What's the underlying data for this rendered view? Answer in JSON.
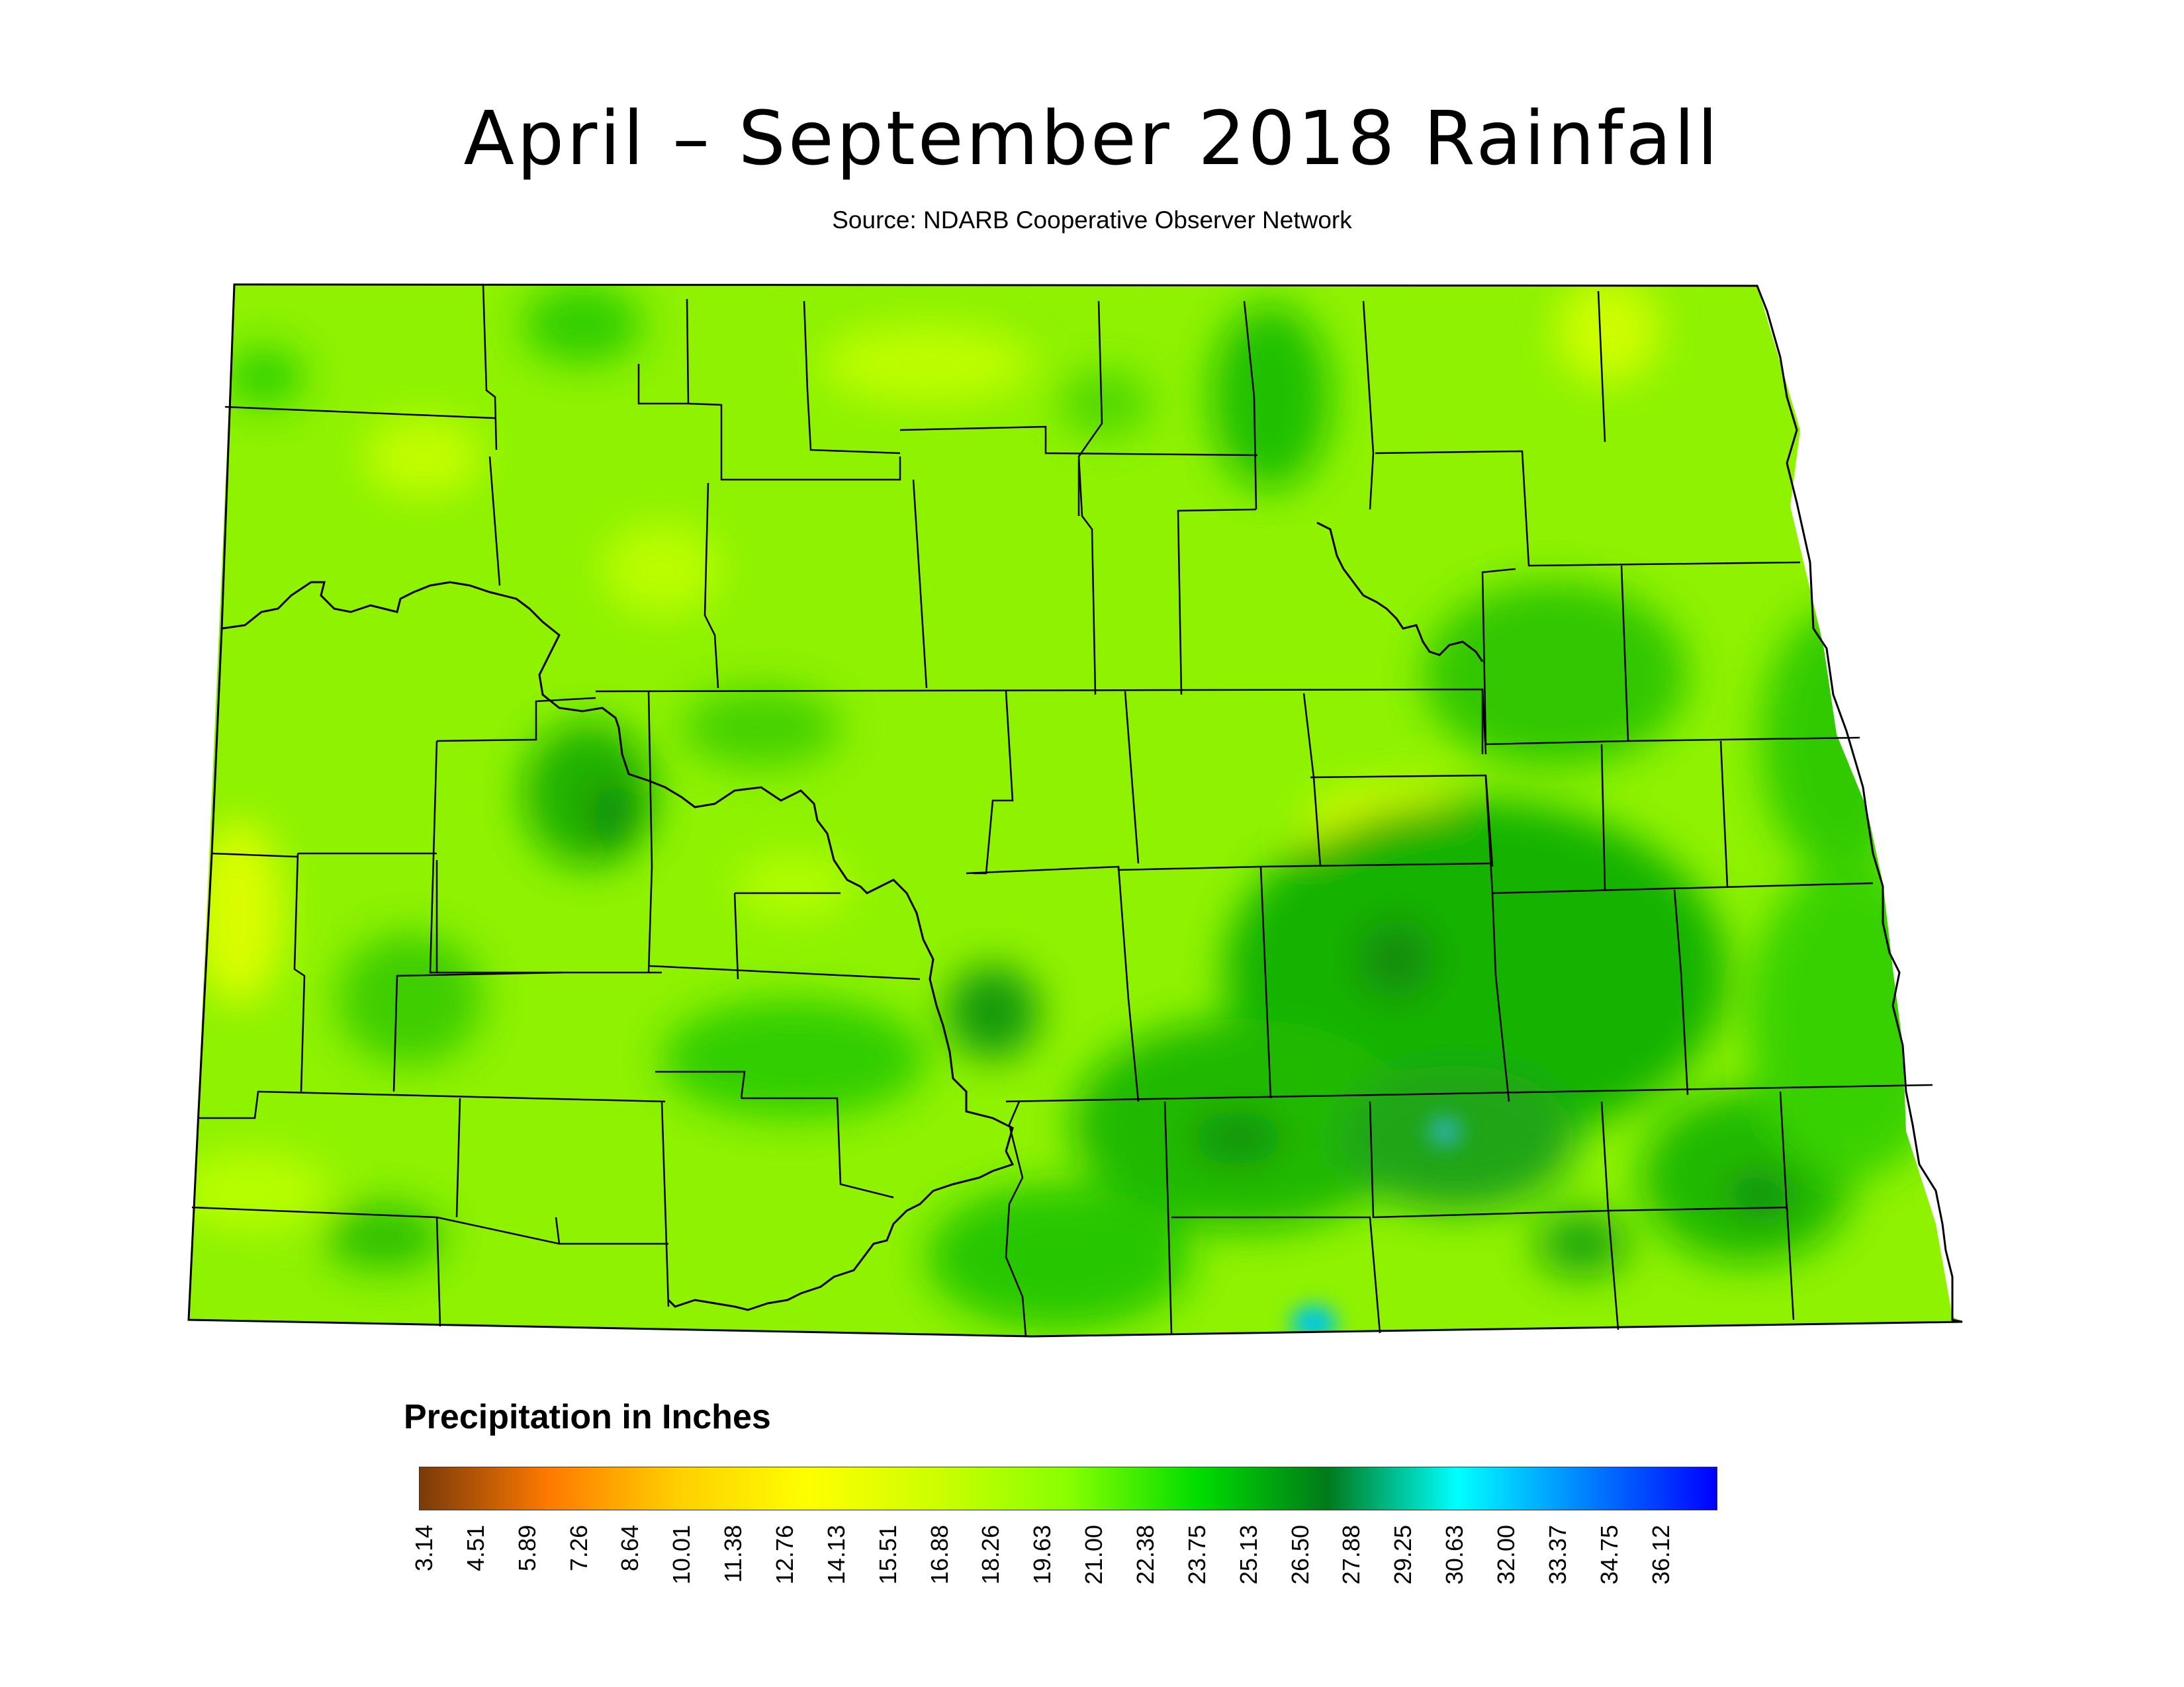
{
  "title": "April – September 2018 Rainfall",
  "subtitle": "Source: NDARB Cooperative Observer Network",
  "legend": {
    "title": "Precipitation in Inches",
    "ticks": [
      "3.14",
      "4.51",
      "5.89",
      "7.26",
      "8.64",
      "10.01",
      "11.38",
      "12.76",
      "14.13",
      "15.51",
      "16.88",
      "18.26",
      "19.63",
      "21.00",
      "22.38",
      "23.75",
      "25.13",
      "26.50",
      "27.88",
      "29.25",
      "30.63",
      "32.00",
      "33.37",
      "34.75",
      "36.12"
    ],
    "colors": [
      "#7a3a0a",
      "#ff7a00",
      "#ffd000",
      "#ffff00",
      "#ccff00",
      "#88ff00",
      "#00dd00",
      "#007a1a",
      "#00ffff",
      "#0080ff",
      "#0000ff"
    ]
  },
  "map": {
    "region": "North Dakota",
    "base_color": "#8ef200",
    "notes_colors": {
      "dry": "#e8ff00",
      "wet": "#00a81a",
      "very_wet": "#00c8ff"
    }
  }
}
